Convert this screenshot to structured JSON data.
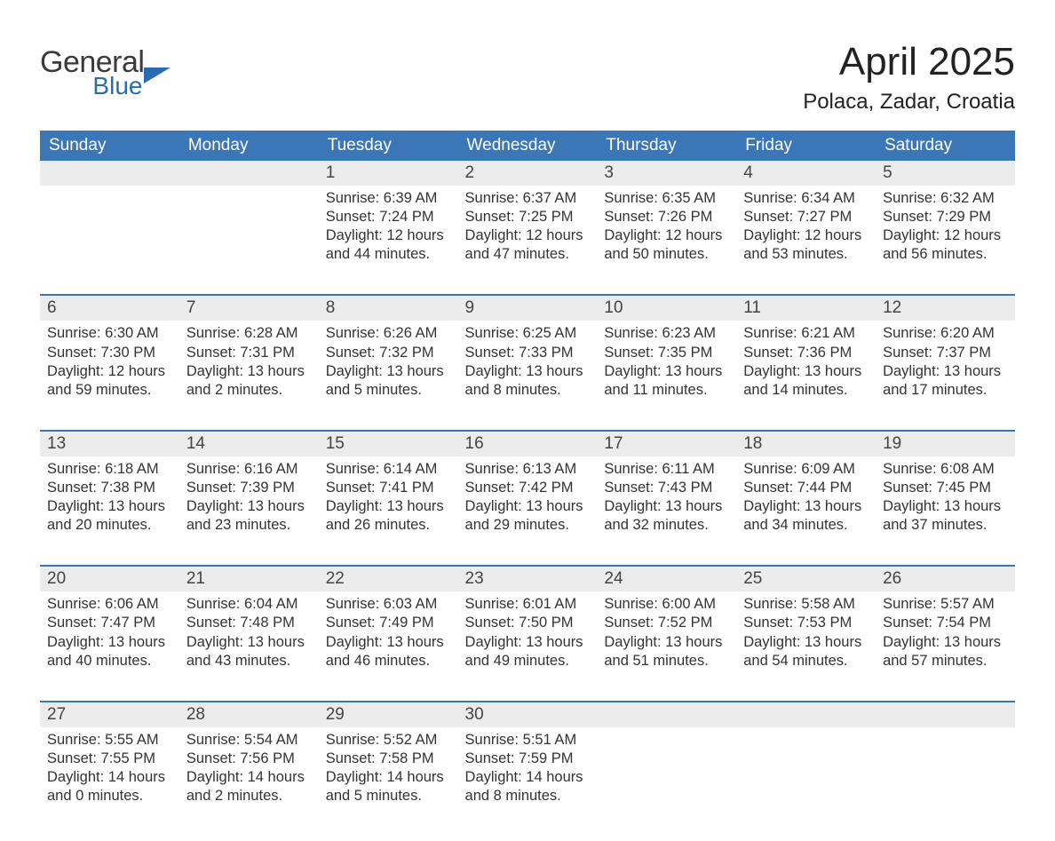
{
  "logo": {
    "line1": "General",
    "line2": "Blue"
  },
  "title": "April 2025",
  "location": "Polaca, Zadar, Croatia",
  "colors": {
    "header_bg": "#3b77b6",
    "header_text": "#ffffff",
    "daynum_bg": "#ececec",
    "row_border": "#3b77b6",
    "logo_blue": "#2b6cb0",
    "body_text": "#333333",
    "background": "#ffffff"
  },
  "fonts": {
    "title_size_pt": 33,
    "location_size_pt": 18,
    "header_size_pt": 14,
    "daynum_size_pt": 14,
    "detail_size_pt": 12
  },
  "weekdays": [
    "Sunday",
    "Monday",
    "Tuesday",
    "Wednesday",
    "Thursday",
    "Friday",
    "Saturday"
  ],
  "weeks": [
    {
      "first": true,
      "nums": [
        "",
        "",
        "1",
        "2",
        "3",
        "4",
        "5"
      ],
      "details": [
        "",
        "",
        "Sunrise: 6:39 AM\nSunset: 7:24 PM\nDaylight: 12 hours and 44 minutes.",
        "Sunrise: 6:37 AM\nSunset: 7:25 PM\nDaylight: 12 hours and 47 minutes.",
        "Sunrise: 6:35 AM\nSunset: 7:26 PM\nDaylight: 12 hours and 50 minutes.",
        "Sunrise: 6:34 AM\nSunset: 7:27 PM\nDaylight: 12 hours and 53 minutes.",
        "Sunrise: 6:32 AM\nSunset: 7:29 PM\nDaylight: 12 hours and 56 minutes."
      ]
    },
    {
      "nums": [
        "6",
        "7",
        "8",
        "9",
        "10",
        "11",
        "12"
      ],
      "details": [
        "Sunrise: 6:30 AM\nSunset: 7:30 PM\nDaylight: 12 hours and 59 minutes.",
        "Sunrise: 6:28 AM\nSunset: 7:31 PM\nDaylight: 13 hours and 2 minutes.",
        "Sunrise: 6:26 AM\nSunset: 7:32 PM\nDaylight: 13 hours and 5 minutes.",
        "Sunrise: 6:25 AM\nSunset: 7:33 PM\nDaylight: 13 hours and 8 minutes.",
        "Sunrise: 6:23 AM\nSunset: 7:35 PM\nDaylight: 13 hours and 11 minutes.",
        "Sunrise: 6:21 AM\nSunset: 7:36 PM\nDaylight: 13 hours and 14 minutes.",
        "Sunrise: 6:20 AM\nSunset: 7:37 PM\nDaylight: 13 hours and 17 minutes."
      ]
    },
    {
      "nums": [
        "13",
        "14",
        "15",
        "16",
        "17",
        "18",
        "19"
      ],
      "details": [
        "Sunrise: 6:18 AM\nSunset: 7:38 PM\nDaylight: 13 hours and 20 minutes.",
        "Sunrise: 6:16 AM\nSunset: 7:39 PM\nDaylight: 13 hours and 23 minutes.",
        "Sunrise: 6:14 AM\nSunset: 7:41 PM\nDaylight: 13 hours and 26 minutes.",
        "Sunrise: 6:13 AM\nSunset: 7:42 PM\nDaylight: 13 hours and 29 minutes.",
        "Sunrise: 6:11 AM\nSunset: 7:43 PM\nDaylight: 13 hours and 32 minutes.",
        "Sunrise: 6:09 AM\nSunset: 7:44 PM\nDaylight: 13 hours and 34 minutes.",
        "Sunrise: 6:08 AM\nSunset: 7:45 PM\nDaylight: 13 hours and 37 minutes."
      ]
    },
    {
      "nums": [
        "20",
        "21",
        "22",
        "23",
        "24",
        "25",
        "26"
      ],
      "details": [
        "Sunrise: 6:06 AM\nSunset: 7:47 PM\nDaylight: 13 hours and 40 minutes.",
        "Sunrise: 6:04 AM\nSunset: 7:48 PM\nDaylight: 13 hours and 43 minutes.",
        "Sunrise: 6:03 AM\nSunset: 7:49 PM\nDaylight: 13 hours and 46 minutes.",
        "Sunrise: 6:01 AM\nSunset: 7:50 PM\nDaylight: 13 hours and 49 minutes.",
        "Sunrise: 6:00 AM\nSunset: 7:52 PM\nDaylight: 13 hours and 51 minutes.",
        "Sunrise: 5:58 AM\nSunset: 7:53 PM\nDaylight: 13 hours and 54 minutes.",
        "Sunrise: 5:57 AM\nSunset: 7:54 PM\nDaylight: 13 hours and 57 minutes."
      ]
    },
    {
      "last": true,
      "nums": [
        "27",
        "28",
        "29",
        "30",
        "",
        "",
        ""
      ],
      "details": [
        "Sunrise: 5:55 AM\nSunset: 7:55 PM\nDaylight: 14 hours and 0 minutes.",
        "Sunrise: 5:54 AM\nSunset: 7:56 PM\nDaylight: 14 hours and 2 minutes.",
        "Sunrise: 5:52 AM\nSunset: 7:58 PM\nDaylight: 14 hours and 5 minutes.",
        "Sunrise: 5:51 AM\nSunset: 7:59 PM\nDaylight: 14 hours and 8 minutes.",
        "",
        "",
        ""
      ]
    }
  ]
}
